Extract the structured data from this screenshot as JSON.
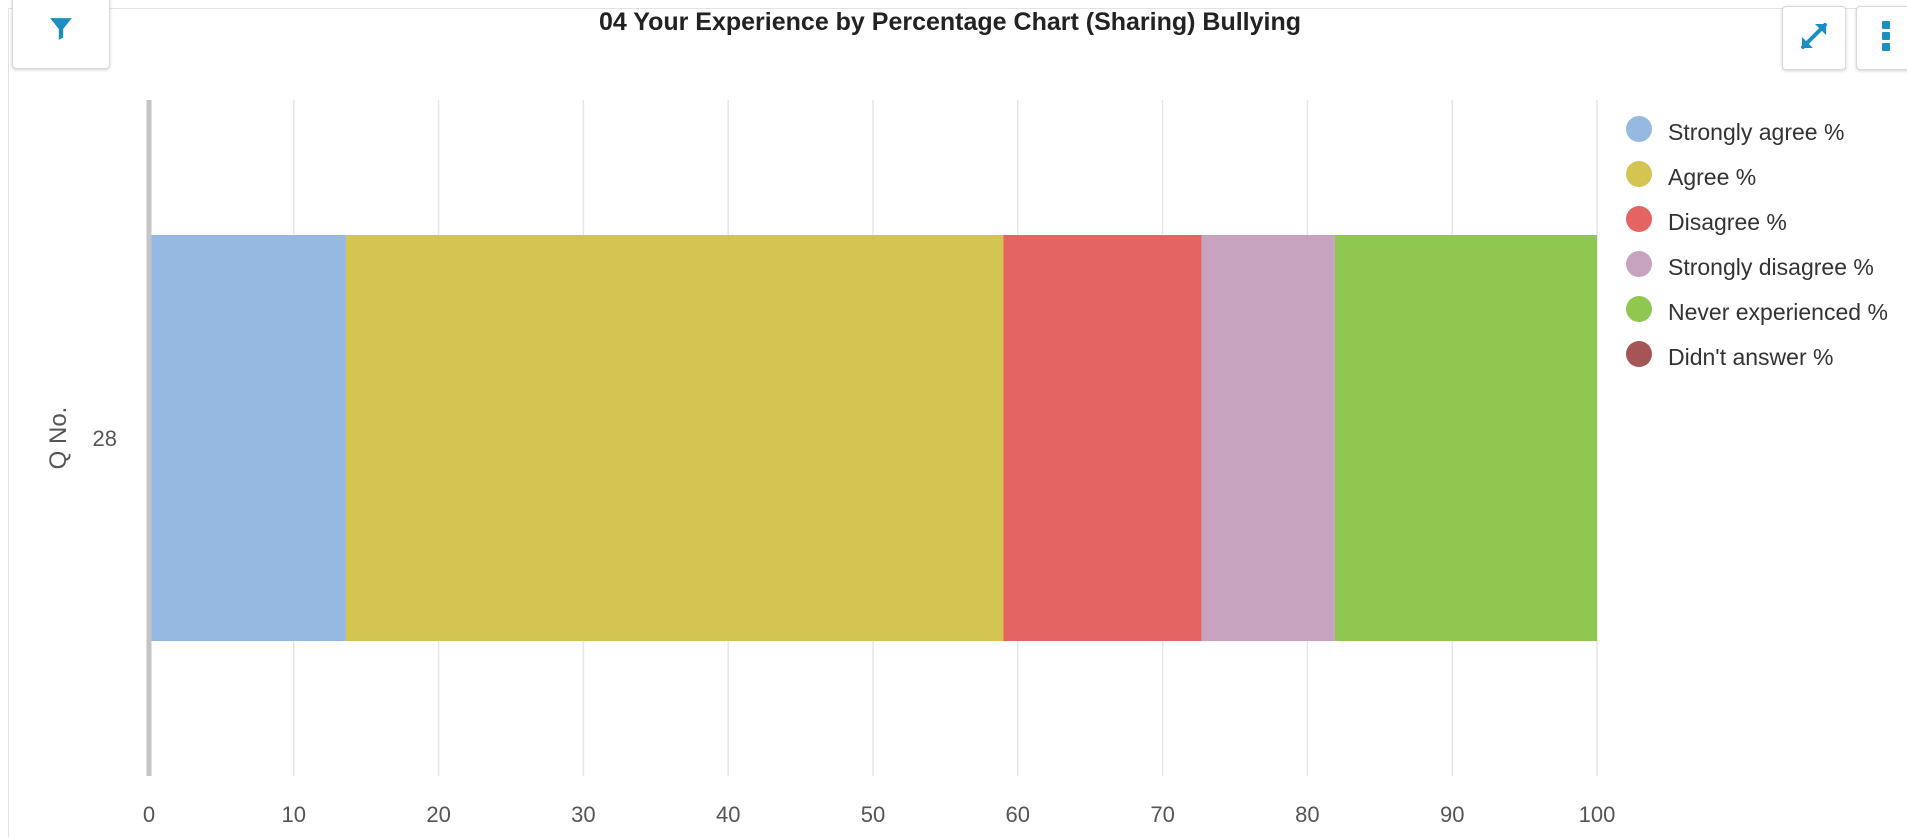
{
  "toolbar": {
    "filter_icon": "filter-icon",
    "expand_icon": "expand-icon",
    "menu_icon": "more-vertical-icon",
    "accent_color": "#1b8fbf"
  },
  "chart_data": {
    "type": "bar",
    "orientation": "horizontal",
    "stacked": true,
    "title": "04 Your Experience by Percentage Chart (Sharing) Bullying",
    "ylabel": "Q No.",
    "xlabel": "",
    "categories": [
      "28"
    ],
    "xlim": [
      0,
      100
    ],
    "xticks": [
      "0",
      "10",
      "20",
      "30",
      "40",
      "50",
      "60",
      "70",
      "80",
      "90",
      "100"
    ],
    "grid": true,
    "legend_position": "right",
    "series": [
      {
        "name": "Strongly agree %",
        "color": "#95b9e0",
        "values": [
          13.6
        ]
      },
      {
        "name": "Agree %",
        "color": "#d4c452",
        "values": [
          45.4
        ]
      },
      {
        "name": "Disagree %",
        "color": "#e46363",
        "values": [
          13.7
        ]
      },
      {
        "name": "Strongly disagree %",
        "color": "#c8a3bf",
        "values": [
          9.2
        ]
      },
      {
        "name": "Never experienced %",
        "color": "#8fc750",
        "values": [
          18.1
        ]
      },
      {
        "name": "Didn't answer %",
        "color": "#a55555",
        "values": [
          0
        ]
      }
    ]
  }
}
